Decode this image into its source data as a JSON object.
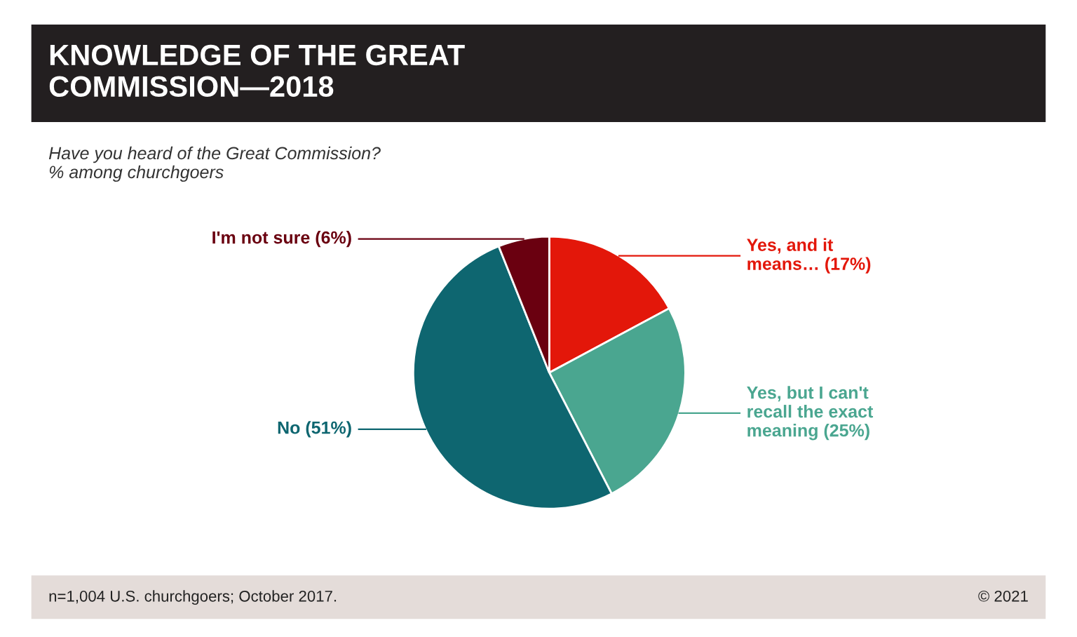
{
  "chart_data": {
    "type": "pie",
    "title": "KNOWLEDGE OF THE GREAT\nCOMMISSION—2018",
    "subtitle": "Have you heard of the Great Commission?\n% among churchgoers",
    "categories": [
      "Yes, and it\nmeans…",
      "Yes, but I can't\nrecall the exact\nmeaning",
      "No",
      "I'm not sure"
    ],
    "values": [
      17,
      25,
      51,
      6
    ],
    "value_labels": [
      "(17%)",
      "(25%)",
      "(51%)",
      "(6%)"
    ],
    "colors": [
      "#e3170a",
      "#4aa690",
      "#0e6670",
      "#6a0010"
    ],
    "annotations": [
      "n=1,004 U.S. churchgoers; October 2017.",
      "© 2021"
    ]
  }
}
